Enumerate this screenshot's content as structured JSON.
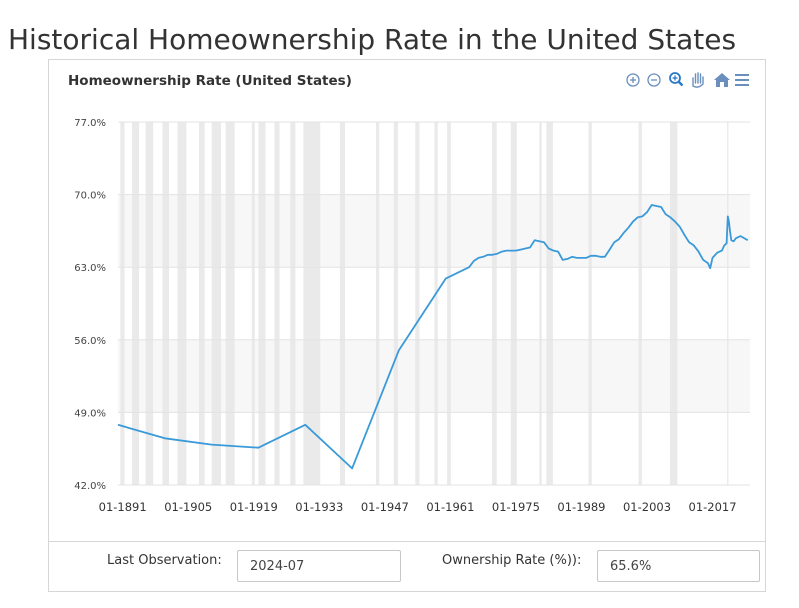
{
  "page": {
    "title": "Historical Homeownership Rate in the United States"
  },
  "footer": {
    "last_observation_label": "Last Observation:",
    "last_observation_value": "2024-07",
    "rate_label": "Ownership Rate (%)):",
    "rate_value": "65.6%"
  },
  "toolbar": {
    "icons": [
      "zoom-in-icon",
      "zoom-out-icon",
      "magnifier-icon",
      "pan-hand-icon",
      "home-icon",
      "menu-icon"
    ],
    "icon_color": "#6a8fbf",
    "active_icon_color": "#2a78c8"
  },
  "chart_data": {
    "type": "line",
    "title": "Homeownership Rate (United States)",
    "xlabel": "",
    "ylabel": "",
    "xlim": [
      1890,
      2025
    ],
    "ylim": [
      42,
      77
    ],
    "x_ticks": [
      "01-1891",
      "01-1905",
      "01-1919",
      "01-1933",
      "01-1947",
      "01-1961",
      "01-1975",
      "01-1989",
      "01-2003",
      "01-2017"
    ],
    "y_ticks": [
      "42.0%",
      "49.0%",
      "56.0%",
      "63.0%",
      "70.0%",
      "77.0%"
    ],
    "grid": true,
    "legend": "none",
    "line_color": "#3a9ad9",
    "recession_color": "#e6e6e6",
    "recessions": [
      [
        1890.5,
        1891.4
      ],
      [
        1893.0,
        1894.5
      ],
      [
        1895.9,
        1897.5
      ],
      [
        1899.5,
        1900.9
      ],
      [
        1902.7,
        1904.6
      ],
      [
        1907.3,
        1908.5
      ],
      [
        1910.0,
        1912.0
      ],
      [
        1913.0,
        1914.9
      ],
      [
        1918.6,
        1919.2
      ],
      [
        1920.0,
        1921.5
      ],
      [
        1923.4,
        1924.5
      ],
      [
        1926.8,
        1927.9
      ],
      [
        1929.6,
        1933.2
      ],
      [
        1937.4,
        1938.5
      ],
      [
        1945.1,
        1945.8
      ],
      [
        1948.9,
        1949.8
      ],
      [
        1953.5,
        1954.4
      ],
      [
        1957.6,
        1958.3
      ],
      [
        1960.3,
        1961.1
      ],
      [
        1969.9,
        1970.9
      ],
      [
        1973.9,
        1975.2
      ],
      [
        1980.0,
        1980.5
      ],
      [
        1981.5,
        1982.9
      ],
      [
        1990.5,
        1991.2
      ],
      [
        2001.2,
        2001.9
      ],
      [
        2007.9,
        2009.5
      ],
      [
        2020.1,
        2020.4
      ]
    ],
    "series": [
      {
        "x": [
          1890,
          1900,
          1910,
          1920,
          1930,
          1940,
          1950,
          1960,
          1965,
          1966,
          1967,
          1968,
          1969,
          1970,
          1971,
          1972,
          1973,
          1974,
          1975,
          1976,
          1977,
          1978,
          1979,
          1980,
          1981,
          1982,
          1983,
          1984,
          1985,
          1986,
          1987,
          1988,
          1989,
          1990,
          1991,
          1992,
          1993,
          1994,
          1995,
          1996,
          1997,
          1998,
          1999,
          2000,
          2001,
          2002,
          2003,
          2004,
          2005,
          2006,
          2007,
          2008,
          2009,
          2010,
          2011,
          2012,
          2013,
          2014,
          2015,
          2016,
          2016.5,
          2017,
          2018,
          2019,
          2019.5,
          2020.0,
          2020.25,
          2020.5,
          2020.75,
          2021,
          2021.5,
          2022,
          2023,
          2024.5
        ],
        "y": [
          47.8,
          46.5,
          45.9,
          45.6,
          47.8,
          43.6,
          55.0,
          61.9,
          63.0,
          63.6,
          63.9,
          64.0,
          64.2,
          64.2,
          64.3,
          64.5,
          64.6,
          64.6,
          64.6,
          64.7,
          64.8,
          64.9,
          65.6,
          65.5,
          65.4,
          64.8,
          64.6,
          64.5,
          63.7,
          63.8,
          64.0,
          63.9,
          63.9,
          63.9,
          64.1,
          64.1,
          64.0,
          64.0,
          64.7,
          65.4,
          65.7,
          66.3,
          66.8,
          67.4,
          67.8,
          67.9,
          68.3,
          69.0,
          68.9,
          68.8,
          68.1,
          67.8,
          67.4,
          66.9,
          66.1,
          65.4,
          65.1,
          64.5,
          63.7,
          63.4,
          62.9,
          63.9,
          64.4,
          64.6,
          65.1,
          65.3,
          67.9,
          67.4,
          66.4,
          65.6,
          65.5,
          65.8,
          66.0,
          65.6
        ]
      }
    ]
  }
}
